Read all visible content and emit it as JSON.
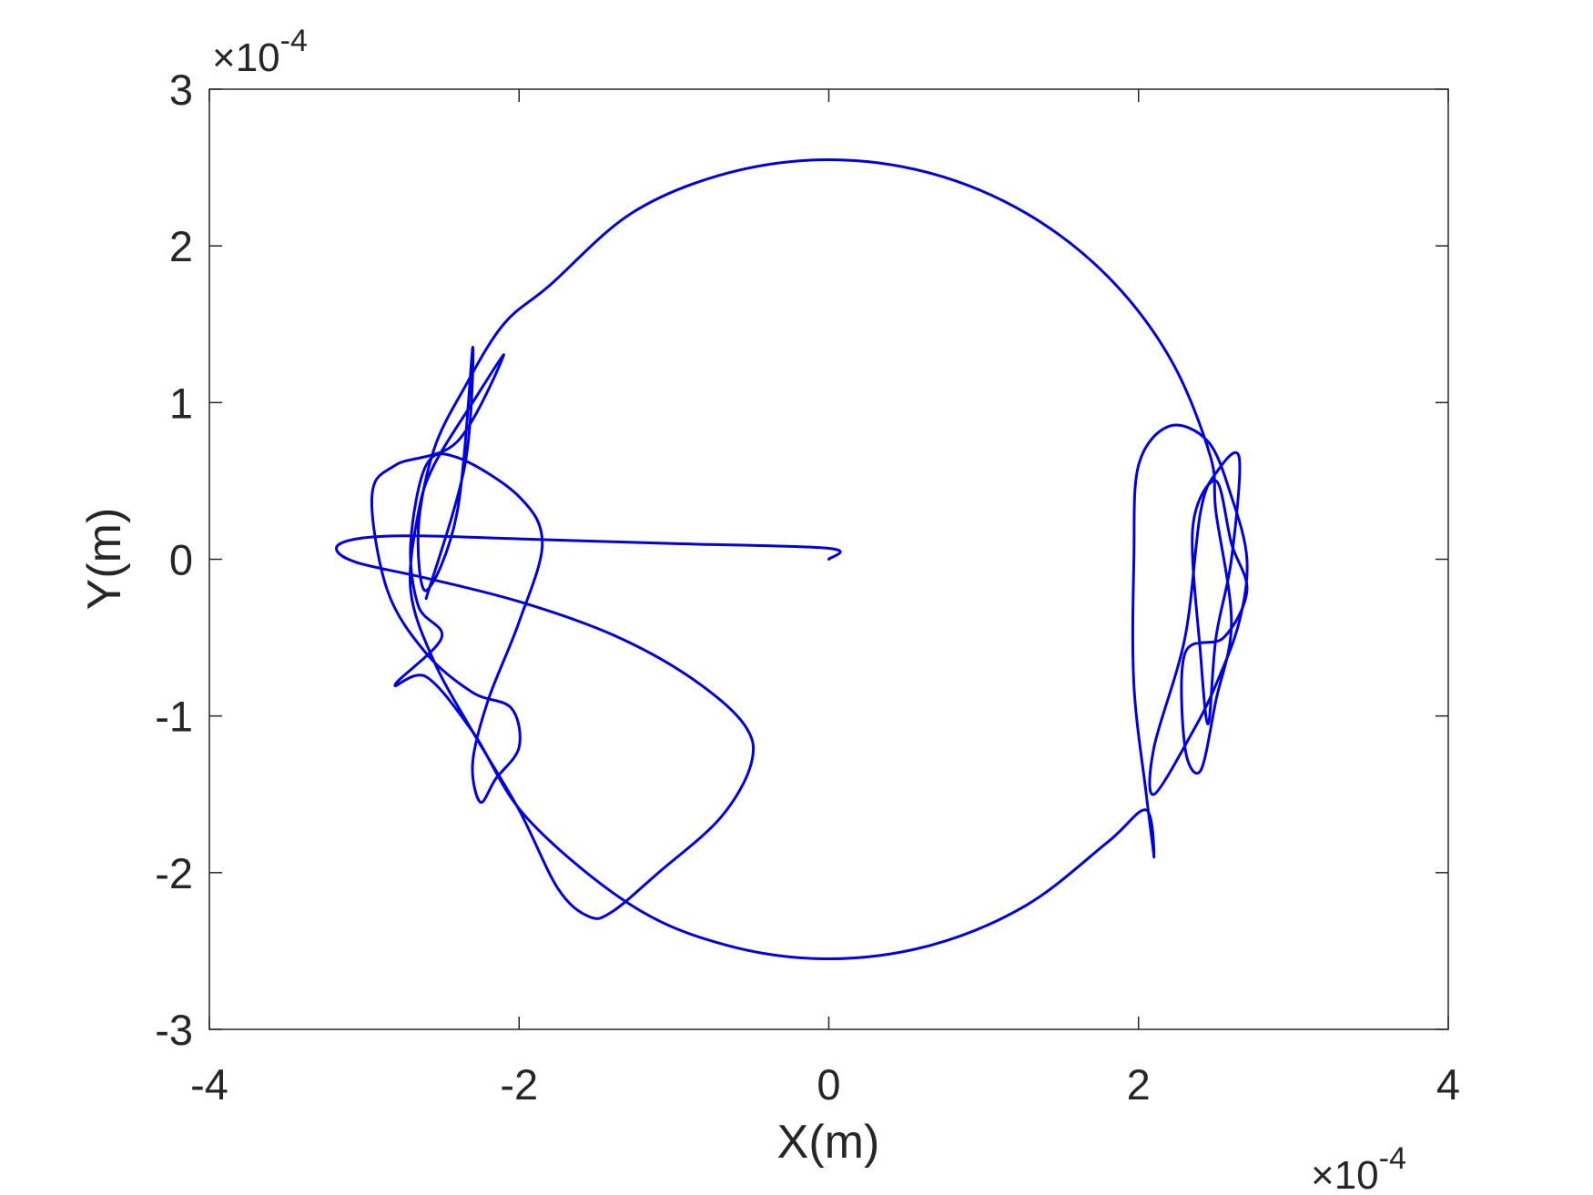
{
  "chart_data": {
    "type": "line",
    "xlabel": "X(m)",
    "ylabel": "Y(m)",
    "x_multiplier": {
      "base": "×10",
      "exponent": "-4"
    },
    "y_multiplier": {
      "base": "×10",
      "exponent": "-4"
    },
    "xlim": [
      -4,
      4
    ],
    "xticks": [
      -4,
      -2,
      0,
      2,
      4
    ],
    "ylim": [
      -3,
      3
    ],
    "yticks": [
      -3,
      -2,
      -1,
      0,
      1,
      2,
      3
    ],
    "color": "#0000e0",
    "x": [
      0,
      0,
      -1,
      -2,
      -2.7,
      -3.05,
      -3.18,
      -3.05,
      -2.6,
      -2,
      -1.4,
      -0.9,
      -0.55,
      -0.5,
      -0.7,
      -1.1,
      -1.4,
      -1.55,
      -1.75,
      -2.0,
      -2.3,
      -2.55,
      -2.7,
      -2.65,
      -2.55,
      -2.3,
      -2.1,
      -2.4,
      -2.8,
      -2.95,
      -2.85,
      -2.6,
      -2.3,
      -2.05,
      -2.0,
      -2.15,
      -2.25,
      -2.3,
      -2.2,
      -2.0,
      -1.85,
      -2.0,
      -2.4,
      -2.6,
      -2.7,
      -2.65,
      -2.5,
      -2.8,
      -2.6,
      -2.3,
      -1.95,
      -1.275,
      -0.66,
      0,
      0.66,
      1.275,
      1.803,
      2.05,
      2.1,
      2.05,
      1.97,
      1.97,
      2.0,
      2.2,
      2.45,
      2.6,
      2.7,
      2.65,
      2.5,
      2.35,
      2.1,
      2.1,
      2.3,
      2.4,
      2.5,
      2.65,
      2.6,
      2.5,
      2.45,
      2.4,
      2.35,
      2.5,
      2.6,
      2.7,
      2.55,
      2.3,
      2.3,
      2.4,
      2.5,
      2.6,
      2.5,
      2.463,
      2.208,
      1.803,
      1.275,
      0.66,
      0,
      -0.66,
      -1.275,
      -1.8,
      -2.1,
      -2.35,
      -2.55,
      -2.65,
      -2.6,
      -2.4,
      -2.3,
      -2.35,
      -2.6
    ],
    "values": [
      0,
      0.07,
      0.1,
      0.13,
      0.15,
      0.13,
      0.07,
      -0.02,
      -0.12,
      -0.27,
      -0.48,
      -0.75,
      -1.05,
      -1.3,
      -1.65,
      -2.0,
      -2.25,
      -2.28,
      -2.1,
      -1.6,
      -1.1,
      -0.65,
      -0.2,
      0.3,
      0.6,
      1.0,
      1.3,
      0.75,
      0.6,
      0.4,
      -0.2,
      -0.6,
      -0.85,
      -0.95,
      -1.2,
      -1.4,
      -1.55,
      -1.3,
      -0.9,
      -0.4,
      0.1,
      0.4,
      0.65,
      0.6,
      0.1,
      -0.3,
      -0.5,
      -0.8,
      -0.75,
      -1.1,
      -1.65,
      -2.208,
      -2.463,
      -2.55,
      -2.463,
      -2.208,
      -1.803,
      -1.6,
      -1.9,
      -1.5,
      -0.8,
      0,
      0.6,
      0.85,
      0.75,
      0.4,
      0,
      -0.4,
      -0.8,
      -1.1,
      -1.5,
      -1.2,
      -0.5,
      0.3,
      0.55,
      0.65,
      0,
      -0.5,
      -1.05,
      -0.6,
      0.2,
      0.5,
      0.1,
      -0.2,
      -0.5,
      -0.6,
      -1.2,
      -1.35,
      -0.9,
      -0.4,
      0.3,
      0.66,
      1.275,
      1.803,
      2.208,
      2.463,
      2.55,
      2.463,
      2.208,
      1.75,
      1.5,
      1.1,
      0.7,
      0.2,
      -0.2,
      0.3,
      1.35,
      0.6,
      -0.25
    ]
  }
}
